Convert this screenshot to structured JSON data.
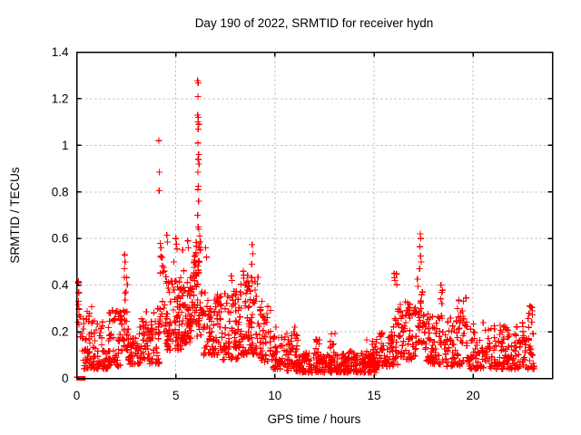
{
  "chart_data": {
    "type": "scatter",
    "title": "Day 190 of 2022, SRMTID for receiver hydn",
    "xlabel": "GPS time / hours",
    "ylabel": "SRMTID / TECUs",
    "xlim": [
      0,
      24
    ],
    "ylim": [
      0,
      1.4
    ],
    "x_ticks": [
      0,
      5,
      10,
      15,
      20
    ],
    "x_tick_labels": [
      "0",
      "5",
      "10",
      "15",
      "20"
    ],
    "y_ticks": [
      0,
      0.2,
      0.4,
      0.6,
      0.8,
      1,
      1.2,
      1.4
    ],
    "y_tick_labels": [
      "0",
      "0.2",
      "0.4",
      "0.6",
      "0.8",
      "1",
      "1.2",
      "1.4"
    ],
    "legend": "none",
    "frame_color": "#000000",
    "grid": {
      "show": true,
      "style": "dashed",
      "color": "#b5b5b5",
      "x_at": [
        5,
        10,
        15,
        20
      ],
      "y_at": [
        0.2,
        0.4,
        0.6,
        0.8,
        1.0,
        1.2
      ]
    },
    "marker": {
      "glyph": "plus",
      "size": 7,
      "color": "#ff0000"
    },
    "series": [
      {
        "name": "SRMTID",
        "color": "#ff0000",
        "seed": 190,
        "zero_squares": [
          0.1,
          0.33
        ],
        "outliers": [
          [
            0.02,
            0.005
          ],
          [
            0.08,
            0.41
          ],
          [
            0.1,
            0.37
          ],
          [
            0.09,
            0.33
          ],
          [
            0.11,
            0.3
          ],
          [
            2.42,
            0.53
          ],
          [
            2.44,
            0.5
          ],
          [
            2.4,
            0.47
          ],
          [
            4.15,
            1.02
          ],
          [
            4.17,
            0.885
          ],
          [
            4.16,
            0.805
          ],
          [
            4.22,
            0.58
          ],
          [
            4.25,
            0.56
          ],
          [
            4.27,
            0.52
          ],
          [
            4.55,
            0.615
          ],
          [
            4.58,
            0.585
          ],
          [
            4.9,
            0.5
          ],
          [
            5.0,
            0.6
          ],
          [
            5.03,
            0.575
          ],
          [
            5.06,
            0.555
          ],
          [
            5.35,
            0.55
          ],
          [
            5.6,
            0.59
          ],
          [
            5.64,
            0.56
          ],
          [
            6.1,
            1.278
          ],
          [
            6.13,
            1.268
          ],
          [
            6.11,
            1.21
          ],
          [
            6.1,
            1.13
          ],
          [
            6.14,
            1.12
          ],
          [
            6.12,
            1.1
          ],
          [
            6.16,
            1.09
          ],
          [
            6.13,
            1.07
          ],
          [
            6.12,
            1.01
          ],
          [
            6.15,
            0.96
          ],
          [
            6.13,
            0.94
          ],
          [
            6.17,
            0.92
          ],
          [
            6.11,
            0.885
          ],
          [
            6.14,
            0.825
          ],
          [
            6.12,
            0.81
          ],
          [
            6.15,
            0.76
          ],
          [
            6.1,
            0.7
          ],
          [
            6.13,
            0.65
          ],
          [
            6.16,
            0.64
          ],
          [
            6.2,
            0.61
          ],
          [
            6.24,
            0.585
          ],
          [
            6.18,
            0.566
          ],
          [
            6.5,
            0.56
          ],
          [
            6.55,
            0.52
          ],
          [
            7.8,
            0.44
          ],
          [
            7.83,
            0.42
          ],
          [
            8.4,
            0.46
          ],
          [
            8.43,
            0.43
          ],
          [
            8.85,
            0.574
          ],
          [
            8.88,
            0.535
          ],
          [
            8.83,
            0.49
          ],
          [
            9.35,
            0.33
          ],
          [
            10.05,
            0.22
          ],
          [
            11.0,
            0.22
          ],
          [
            16.02,
            0.45
          ],
          [
            16.05,
            0.42
          ],
          [
            17.33,
            0.62
          ],
          [
            17.36,
            0.6
          ],
          [
            17.31,
            0.565
          ],
          [
            17.35,
            0.525
          ],
          [
            17.38,
            0.5
          ],
          [
            17.3,
            0.47
          ],
          [
            18.38,
            0.4
          ],
          [
            18.42,
            0.37
          ],
          [
            22.85,
            0.31
          ]
        ],
        "bands_key": "[x_start, x_end, count, y_low, y_high, bias]",
        "bands": [
          [
            0.05,
            0.18,
            10,
            0.12,
            0.42,
            1.0
          ],
          [
            0.25,
            1.3,
            75,
            0.04,
            0.26,
            1.6
          ],
          [
            0.5,
            0.9,
            6,
            0.22,
            0.31,
            1.0
          ],
          [
            1.3,
            1.6,
            25,
            0.04,
            0.13,
            1.5
          ],
          [
            1.6,
            2.3,
            60,
            0.05,
            0.3,
            1.6
          ],
          [
            2.3,
            2.6,
            25,
            0.12,
            0.45,
            1.3
          ],
          [
            2.6,
            3.2,
            45,
            0.06,
            0.25,
            1.6
          ],
          [
            3.2,
            3.65,
            35,
            0.08,
            0.3,
            1.5
          ],
          [
            3.65,
            4.2,
            45,
            0.06,
            0.3,
            1.5
          ],
          [
            4.2,
            4.45,
            16,
            0.2,
            0.55,
            1.2
          ],
          [
            4.45,
            5.3,
            85,
            0.12,
            0.44,
            1.5
          ],
          [
            5.3,
            5.9,
            65,
            0.15,
            0.47,
            1.4
          ],
          [
            5.9,
            6.35,
            60,
            0.18,
            0.6,
            1.3
          ],
          [
            6.35,
            7.3,
            75,
            0.1,
            0.38,
            1.5
          ],
          [
            7.3,
            8.25,
            80,
            0.08,
            0.38,
            1.6
          ],
          [
            8.25,
            9.2,
            85,
            0.1,
            0.45,
            1.4
          ],
          [
            9.2,
            9.8,
            45,
            0.07,
            0.32,
            1.6
          ],
          [
            9.8,
            10.4,
            45,
            0.04,
            0.18,
            1.6
          ],
          [
            10.4,
            11.2,
            60,
            0.03,
            0.2,
            1.8
          ],
          [
            11.2,
            15.2,
            280,
            0.025,
            0.11,
            1.6
          ],
          [
            12.0,
            12.25,
            8,
            0.1,
            0.17,
            1.0
          ],
          [
            12.8,
            13.05,
            8,
            0.1,
            0.2,
            1.0
          ],
          [
            13.7,
            13.95,
            6,
            0.08,
            0.13,
            1.0
          ],
          [
            14.6,
            15.3,
            30,
            0.05,
            0.17,
            1.5
          ],
          [
            15.3,
            16.2,
            60,
            0.05,
            0.2,
            1.6
          ],
          [
            15.95,
            16.15,
            7,
            0.2,
            0.46,
            1.0
          ],
          [
            16.2,
            17.15,
            70,
            0.08,
            0.33,
            1.5
          ],
          [
            17.15,
            17.55,
            30,
            0.15,
            0.48,
            1.2
          ],
          [
            17.55,
            18.6,
            70,
            0.06,
            0.28,
            1.6
          ],
          [
            18.3,
            18.5,
            7,
            0.25,
            0.41,
            1.0
          ],
          [
            18.6,
            19.8,
            70,
            0.05,
            0.27,
            1.6
          ],
          [
            19.2,
            19.65,
            12,
            0.2,
            0.35,
            1.2
          ],
          [
            19.8,
            21.5,
            110,
            0.04,
            0.24,
            1.7
          ],
          [
            21.5,
            23.1,
            110,
            0.04,
            0.24,
            1.7
          ],
          [
            22.75,
            23.0,
            8,
            0.2,
            0.31,
            1.0
          ]
        ]
      }
    ]
  }
}
